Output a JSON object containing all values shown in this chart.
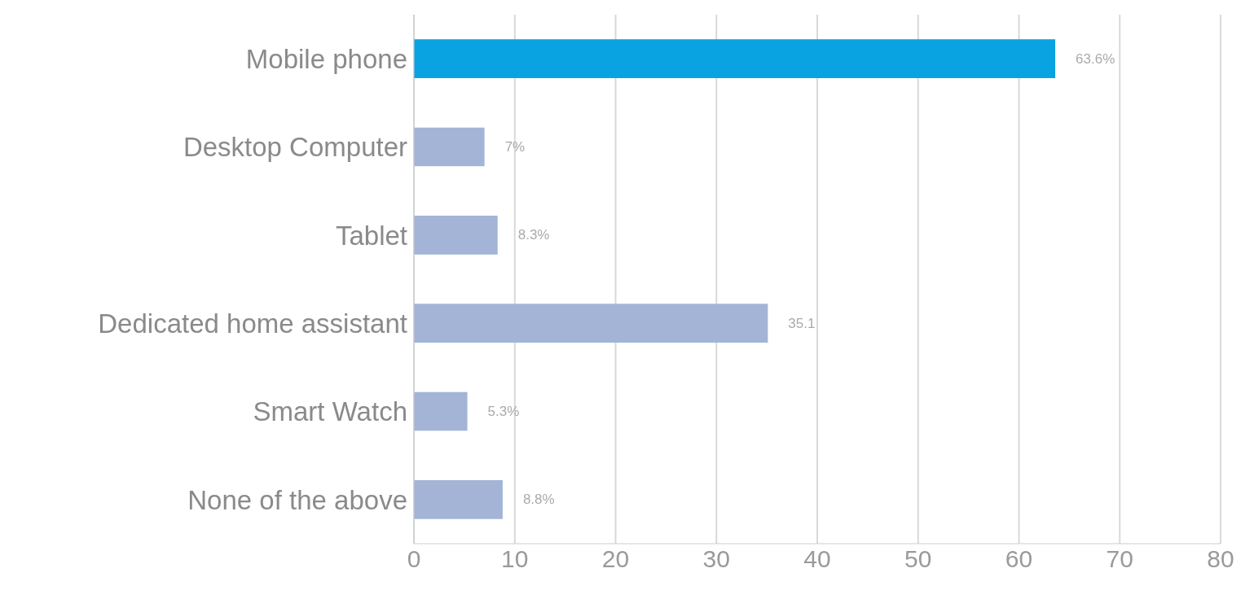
{
  "chart_data": {
    "type": "bar",
    "orientation": "horizontal",
    "categories": [
      "Mobile phone",
      "Desktop Computer",
      "Tablet",
      "Dedicated home assistant",
      "Smart Watch",
      "None of the above"
    ],
    "values": [
      63.6,
      7,
      8.3,
      35.1,
      5.3,
      8.8
    ],
    "colors": [
      "#0aa3e2",
      "#a3b4d6",
      "#a3b4d6",
      "#a3b4d6",
      "#a3b4d6",
      "#a3b4d6"
    ],
    "value_labels": [
      "63.6%",
      "7%",
      "8.3%",
      "35.1",
      "5.3%",
      "8.8%"
    ],
    "xlim": [
      0,
      80
    ],
    "xticks": [
      0,
      10,
      20,
      30,
      40,
      50,
      60,
      70,
      80
    ],
    "grid": "x",
    "legend": false
  }
}
